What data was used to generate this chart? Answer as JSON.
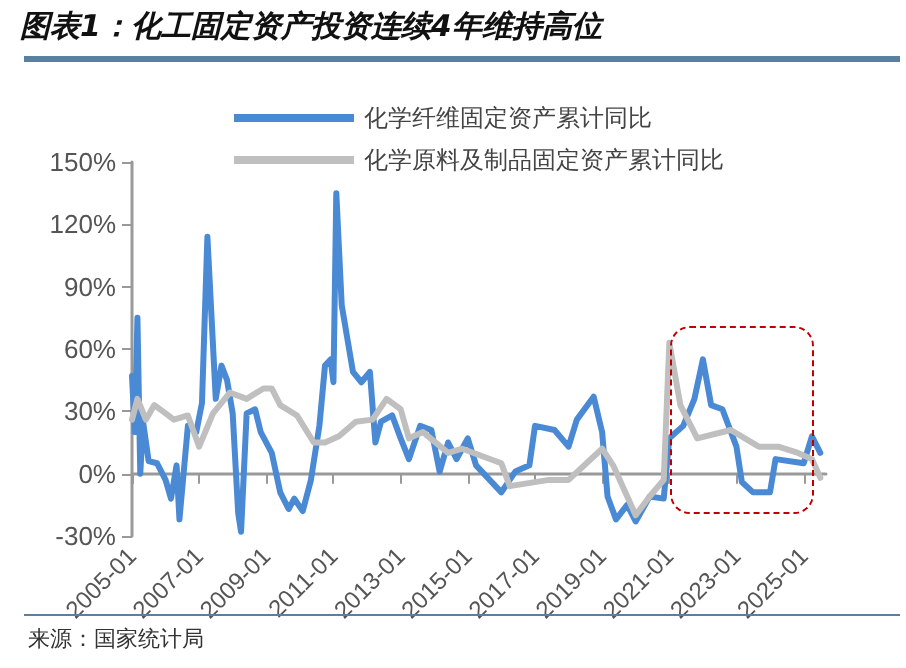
{
  "chart_data": {
    "type": "line",
    "title": "图表1：化工固定资产投资连续4年维持高位",
    "annotations": [
      "来源：国家统计局"
    ],
    "legend": "top",
    "marker": "none",
    "line_style": "solid",
    "xlim": [
      "2005-01",
      "2025-09"
    ],
    "xticks": [
      "2005-01",
      "2007-01",
      "2009-01",
      "2011-01",
      "2013-01",
      "2015-01",
      "2017-01",
      "2019-01",
      "2021-01",
      "2023-01",
      "2025-01"
    ],
    "ylim": [
      -30,
      150
    ],
    "yticks": [
      {
        "value": -30,
        "label": "-30%"
      },
      {
        "value": 0,
        "label": "0%"
      },
      {
        "value": 30,
        "label": "30%"
      },
      {
        "value": 60,
        "label": "60%"
      },
      {
        "value": 90,
        "label": "90%"
      },
      {
        "value": 120,
        "label": "120%"
      },
      {
        "value": 150,
        "label": "150%"
      }
    ],
    "series": [
      {
        "name": "化学纤维固定资产累计同比",
        "color": "#4a89d4",
        "x": [
          "2005-01",
          "2005-02",
          "2005-03",
          "2005-04",
          "2005-05",
          "2005-07",
          "2005-10",
          "2006-01",
          "2006-03",
          "2006-05",
          "2006-06",
          "2006-09",
          "2006-12",
          "2007-02",
          "2007-04",
          "2007-07",
          "2007-09",
          "2007-11",
          "2008-01",
          "2008-03",
          "2008-04",
          "2008-06",
          "2008-09",
          "2008-11",
          "2009-03",
          "2009-06",
          "2009-09",
          "2009-11",
          "2010-02",
          "2010-05",
          "2010-08",
          "2010-10",
          "2010-12",
          "2011-01",
          "2011-02",
          "2011-04",
          "2011-08",
          "2011-11",
          "2012-02",
          "2012-04",
          "2012-06",
          "2012-10",
          "2013-01",
          "2013-04",
          "2013-08",
          "2013-12",
          "2014-03",
          "2014-06",
          "2014-09",
          "2014-11",
          "2015-01",
          "2015-04",
          "2016-01",
          "2016-06",
          "2016-11",
          "2017-01",
          "2017-08",
          "2018-01",
          "2018-04",
          "2018-10",
          "2019-01",
          "2019-03",
          "2019-06",
          "2019-10",
          "2020-01",
          "2020-06",
          "2020-11",
          "2021-01",
          "2021-06",
          "2021-10",
          "2022-01",
          "2022-04",
          "2022-08",
          "2023-01",
          "2023-03",
          "2023-07",
          "2024-01",
          "2024-03",
          "2025-01",
          "2025-04",
          "2025-07"
        ],
        "values": [
          47,
          20,
          75,
          0,
          25,
          6,
          5,
          -3,
          -12,
          4,
          -22,
          23,
          20,
          34,
          114,
          36,
          52,
          45,
          29,
          -19,
          -28,
          29,
          31,
          20,
          10,
          -9,
          -17,
          -12,
          -18,
          -3,
          23,
          52,
          55,
          44,
          135,
          81,
          49,
          44,
          49,
          15,
          25,
          28,
          17,
          7,
          23,
          21,
          1,
          15,
          7,
          12,
          17,
          4,
          -9,
          1,
          4,
          23,
          21,
          13,
          26,
          37,
          20,
          -11,
          -22,
          -15,
          -23,
          -11,
          -12,
          17,
          23,
          36,
          55,
          33,
          31,
          13,
          -4,
          -9,
          -9,
          7,
          5,
          18,
          10
        ]
      },
      {
        "name": "化学原料及制品固定资产累计同比",
        "color": "#bfbfbf",
        "x": [
          "2005-01",
          "2005-03",
          "2005-06",
          "2005-09",
          "2006-01",
          "2006-04",
          "2006-09",
          "2007-01",
          "2007-06",
          "2007-12",
          "2008-06",
          "2008-12",
          "2009-03",
          "2009-06",
          "2009-12",
          "2010-06",
          "2010-10",
          "2011-03",
          "2011-09",
          "2012-03",
          "2012-08",
          "2013-01",
          "2013-04",
          "2013-09",
          "2014-06",
          "2014-11",
          "2016-01",
          "2016-04",
          "2017-06",
          "2018-01",
          "2019-01",
          "2019-05",
          "2020-01",
          "2020-06",
          "2020-11",
          "2021-01",
          "2021-05",
          "2021-11",
          "2022-11",
          "2023-09",
          "2024-04",
          "2024-11",
          "2025-04",
          "2025-07"
        ],
        "values": [
          26,
          36,
          26,
          33,
          29,
          26,
          28,
          13,
          29,
          39,
          36,
          41,
          41,
          33,
          28,
          15,
          15,
          18,
          25,
          26,
          36,
          31,
          17,
          20,
          10,
          12,
          5,
          -6,
          -3,
          -3,
          12,
          4,
          -20,
          -11,
          -3,
          63,
          33,
          17,
          21,
          13,
          13,
          10,
          7,
          -2
        ]
      }
    ]
  }
}
